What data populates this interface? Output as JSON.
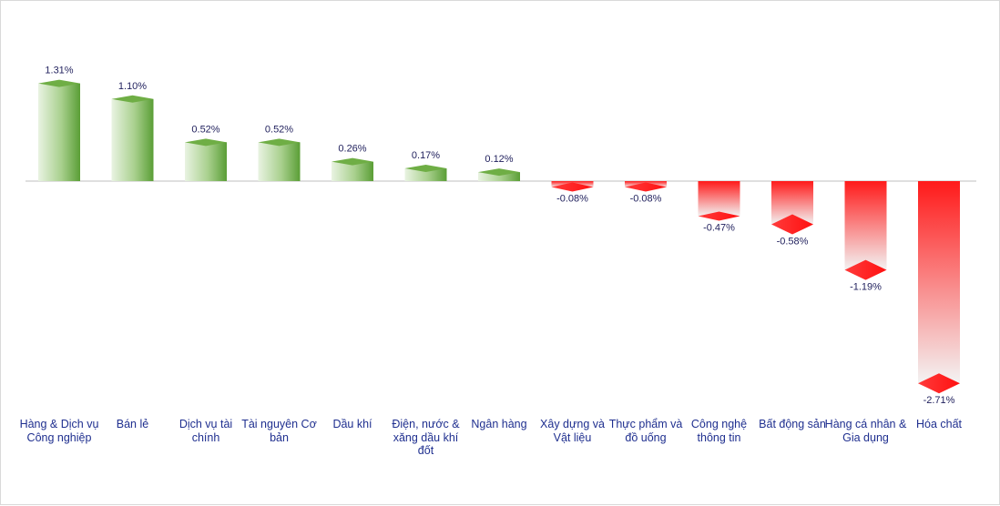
{
  "chart_data": {
    "type": "bar",
    "categories": [
      "Hàng & Dịch vụ Công nghiệp",
      "Bán lẻ",
      "Dịch vụ tài chính",
      "Tài nguyên Cơ bản",
      "Dầu khí",
      "Điện, nước & xăng dầu khí đốt",
      "Ngân hàng",
      "Xây dựng và Vật liệu",
      "Thực phẩm và đồ uống",
      "Công nghệ thông tin",
      "Bất động sản",
      "Hàng cá nhân & Gia dụng",
      "Hóa chất"
    ],
    "values": [
      1.31,
      1.1,
      0.52,
      0.52,
      0.26,
      0.17,
      0.12,
      -0.08,
      -0.08,
      -0.47,
      -0.58,
      -1.19,
      -2.71
    ],
    "data_labels": [
      "1.31%",
      "1.10%",
      "0.52%",
      "0.52%",
      "0.26%",
      "0.17%",
      "0.12%",
      "-0.08%",
      "-0.08%",
      "-0.47%",
      "-0.58%",
      "-1.19%",
      "-2.71%"
    ],
    "unit": "%",
    "colors": {
      "positive": "#5fa83a",
      "negative": "#ff1a1a",
      "axis": "#bfbfbf",
      "text": "#1f1f5c",
      "category_text": "#1f2f8f"
    },
    "title": "",
    "xlabel": "",
    "ylabel": "",
    "grid": false,
    "legend": "none"
  }
}
